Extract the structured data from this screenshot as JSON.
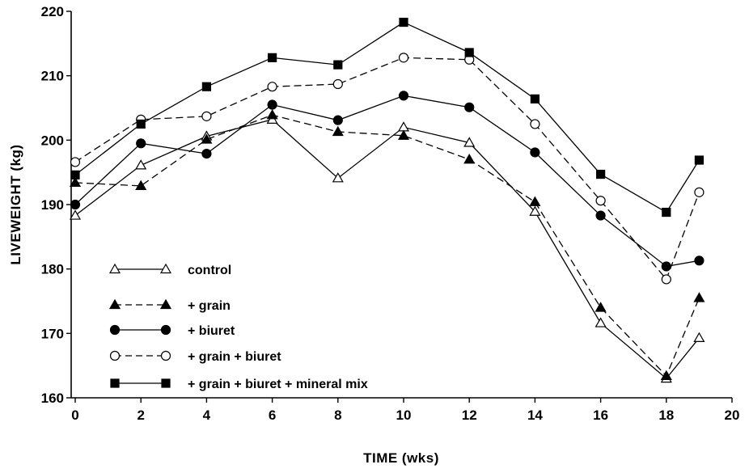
{
  "chart_data": {
    "type": "line",
    "title": "",
    "xlabel": "TIME (wks)",
    "ylabel": "LIVEWEIGHT (kg)",
    "xlim": [
      0,
      20
    ],
    "ylim": [
      160,
      220
    ],
    "xticks": [
      0,
      2,
      4,
      6,
      8,
      10,
      12,
      14,
      16,
      18,
      20
    ],
    "yticks": [
      160,
      170,
      180,
      190,
      200,
      210,
      220
    ],
    "grid": false,
    "legend_position": "lower-left",
    "series": [
      {
        "name": "control",
        "marker": "open-triangle",
        "dash": "solid",
        "x": [
          0,
          2,
          4,
          6,
          8,
          10,
          12,
          14,
          16,
          18,
          19
        ],
        "y": [
          188.3,
          196.1,
          200.6,
          203.2,
          194.1,
          202.0,
          199.6,
          188.9,
          171.6,
          163.0,
          169.3
        ]
      },
      {
        "name": "+ grain",
        "marker": "filled-triangle",
        "dash": "dashed",
        "x": [
          0,
          2,
          4,
          6,
          8,
          10,
          12,
          14,
          16,
          18,
          19
        ],
        "y": [
          193.4,
          192.9,
          200.1,
          203.9,
          201.3,
          200.7,
          197.0,
          190.4,
          174.0,
          163.4,
          175.5
        ]
      },
      {
        "name": "+ biuret",
        "marker": "filled-circle",
        "dash": "solid",
        "x": [
          0,
          2,
          4,
          6,
          8,
          10,
          12,
          14,
          16,
          18,
          19
        ],
        "y": [
          190.0,
          199.5,
          197.9,
          205.5,
          203.1,
          206.9,
          205.1,
          198.1,
          188.3,
          180.4,
          181.3
        ]
      },
      {
        "name": "+ grain + biuret",
        "marker": "open-circle",
        "dash": "dashed",
        "x": [
          0,
          2,
          4,
          6,
          8,
          10,
          12,
          14,
          16,
          18,
          19
        ],
        "y": [
          196.6,
          203.2,
          203.7,
          208.3,
          208.7,
          212.8,
          212.5,
          202.5,
          190.6,
          178.4,
          191.9
        ]
      },
      {
        "name": "+ grain + biuret + mineral mix",
        "marker": "filled-square",
        "dash": "solid",
        "x": [
          0,
          2,
          4,
          6,
          8,
          10,
          12,
          14,
          16,
          18,
          19
        ],
        "y": [
          194.6,
          202.5,
          208.3,
          212.8,
          211.7,
          218.3,
          213.6,
          206.4,
          194.7,
          188.8,
          196.9
        ]
      }
    ]
  }
}
